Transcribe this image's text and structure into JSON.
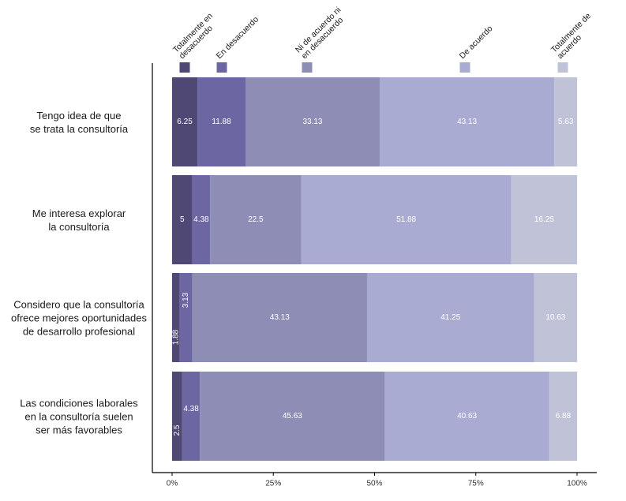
{
  "chart_data": {
    "type": "bar",
    "orientation": "horizontal",
    "stacked": true,
    "categories": [
      [
        "Tengo idea de que",
        "se trata la consultoría"
      ],
      [
        "Me interesa explorar",
        "la consultoría"
      ],
      [
        "Considero que la consultoría",
        "ofrece mejores oportunidades",
        "de desarrollo profesional"
      ],
      [
        "Las condiciones laborales",
        "en la consultoría suelen",
        "ser más favorables"
      ]
    ],
    "series": [
      {
        "name": [
          "Totalmente en",
          "desacuerdo"
        ],
        "color": "#4f4875",
        "values": [
          6.25,
          5,
          1.88,
          2.5
        ]
      },
      {
        "name": [
          "En desacuerdo"
        ],
        "color": "#6c67a2",
        "values": [
          11.88,
          4.38,
          3.13,
          4.38
        ]
      },
      {
        "name": [
          "Ni de acuerdo ni",
          "en desacuerdo"
        ],
        "color": "#8d8db5",
        "values": [
          33.13,
          22.5,
          43.13,
          45.63
        ]
      },
      {
        "name": [
          "De acuerdo"
        ],
        "color": "#aaabd2",
        "values": [
          43.13,
          51.88,
          41.25,
          40.63
        ]
      },
      {
        "name": [
          "Totalmente de",
          "acuerdo"
        ],
        "color": "#c0c3d8",
        "values": [
          5.63,
          16.25,
          10.63,
          6.88
        ]
      }
    ],
    "data_labels": [
      [
        "6.25",
        "11.88",
        "33.13",
        "43.13",
        "5.63"
      ],
      [
        "5",
        "4.38",
        "22.5",
        "51.88",
        "16.25"
      ],
      [
        "1.88",
        "3.13",
        "43.13",
        "41.25",
        "10.63"
      ],
      [
        "2.5",
        "4.38",
        "45.63",
        "40.63",
        "6.88"
      ]
    ],
    "rotated_labels": [
      [
        false,
        false,
        false,
        false,
        false
      ],
      [
        false,
        false,
        false,
        false,
        false
      ],
      [
        true,
        true,
        false,
        false,
        false
      ],
      [
        true,
        false,
        false,
        false,
        false
      ]
    ],
    "xlim": [
      0,
      100
    ],
    "xticks": [
      0,
      25,
      50,
      75,
      100
    ],
    "xtick_labels": [
      "0%",
      "25%",
      "50%",
      "75%",
      "100%"
    ],
    "legend_position": "top",
    "grid": false
  }
}
